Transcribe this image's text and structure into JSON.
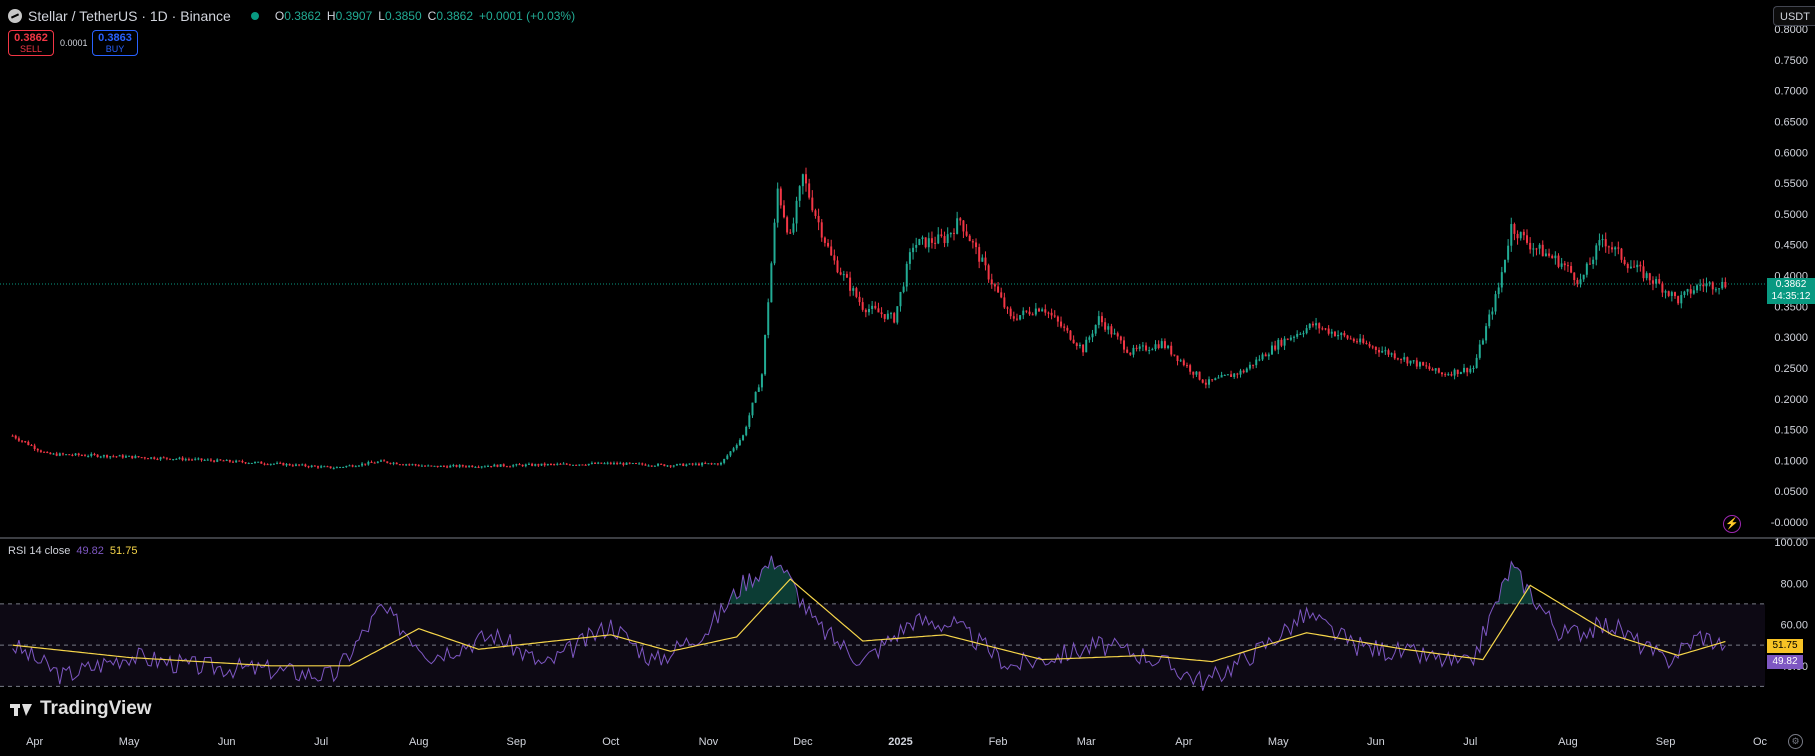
{
  "header": {
    "symbol": "Stellar / TetherUS · 1D · Binance",
    "ohlc": {
      "o_label": "O",
      "o": "0.3862",
      "h_label": "H",
      "h": "0.3907",
      "l_label": "L",
      "l": "0.3850",
      "c_label": "C",
      "c": "0.3862",
      "change": "+0.0001 (+0.03%)"
    }
  },
  "trade": {
    "sell_price": "0.3862",
    "sell_label": "SELL",
    "spread": "0.0001",
    "buy_price": "0.3863",
    "buy_label": "BUY"
  },
  "currency_button": "USDT",
  "price_tag": {
    "price": "0.3862",
    "countdown": "14:35:12"
  },
  "rsi": {
    "title": "RSI 14 close",
    "rsi_value": "49.82",
    "ma_value": "51.75"
  },
  "brand": "TradingView",
  "colors": {
    "up": "#22ab94",
    "down": "#f23645",
    "rsi": "#7e57c2",
    "rsi_ma": "#f7d64a",
    "last_price": "#089981"
  },
  "icons": {
    "flash": "lightning-icon",
    "settings": "gear-icon",
    "logo": "stellar-logo-icon"
  },
  "chart_data": [
    {
      "type": "candlestick",
      "title": "Stellar / TetherUS · 1D · Binance",
      "ylim": [
        -0.0,
        0.8
      ],
      "y_ticks": [
        "0.8000",
        "0.7500",
        "0.7000",
        "0.6500",
        "0.6000",
        "0.5500",
        "0.5000",
        "0.4500",
        "0.4000",
        "0.3500",
        "0.3000",
        "0.2500",
        "0.2000",
        "0.1500",
        "0.1000",
        "0.0500",
        "-0.0000"
      ],
      "x_ticks": [
        "Apr",
        "May",
        "Jun",
        "Jul",
        "Aug",
        "Sep",
        "Oct",
        "Nov",
        "Dec",
        "2025",
        "Feb",
        "Mar",
        "Apr",
        "May",
        "Jun",
        "Jul",
        "Aug",
        "Sep",
        "Oc"
      ],
      "last_price": 0.3862,
      "grid": false,
      "approx_closes": [
        {
          "x": "2024-03-25",
          "y": 0.14
        },
        {
          "x": "2024-04-05",
          "y": 0.11
        },
        {
          "x": "2024-04-20",
          "y": 0.108
        },
        {
          "x": "2024-05-15",
          "y": 0.103
        },
        {
          "x": "2024-06-15",
          "y": 0.095
        },
        {
          "x": "2024-07-05",
          "y": 0.088
        },
        {
          "x": "2024-07-20",
          "y": 0.098
        },
        {
          "x": "2024-08-05",
          "y": 0.09
        },
        {
          "x": "2024-09-01",
          "y": 0.092
        },
        {
          "x": "2024-10-01",
          "y": 0.095
        },
        {
          "x": "2024-10-20",
          "y": 0.092
        },
        {
          "x": "2024-11-05",
          "y": 0.095
        },
        {
          "x": "2024-11-12",
          "y": 0.14
        },
        {
          "x": "2024-11-18",
          "y": 0.24
        },
        {
          "x": "2024-11-23",
          "y": 0.54
        },
        {
          "x": "2024-11-27",
          "y": 0.46
        },
        {
          "x": "2024-12-01",
          "y": 0.56
        },
        {
          "x": "2024-12-05",
          "y": 0.5
        },
        {
          "x": "2024-12-10",
          "y": 0.43
        },
        {
          "x": "2024-12-20",
          "y": 0.35
        },
        {
          "x": "2024-12-30",
          "y": 0.33
        },
        {
          "x": "2025-01-05",
          "y": 0.45
        },
        {
          "x": "2025-01-15",
          "y": 0.46
        },
        {
          "x": "2025-01-20",
          "y": 0.49
        },
        {
          "x": "2025-01-28",
          "y": 0.41
        },
        {
          "x": "2025-02-05",
          "y": 0.33
        },
        {
          "x": "2025-02-15",
          "y": 0.35
        },
        {
          "x": "2025-02-28",
          "y": 0.28
        },
        {
          "x": "2025-03-05",
          "y": 0.33
        },
        {
          "x": "2025-03-15",
          "y": 0.275
        },
        {
          "x": "2025-03-25",
          "y": 0.29
        },
        {
          "x": "2025-04-08",
          "y": 0.225
        },
        {
          "x": "2025-04-20",
          "y": 0.245
        },
        {
          "x": "2025-05-01",
          "y": 0.29
        },
        {
          "x": "2025-05-12",
          "y": 0.32
        },
        {
          "x": "2025-05-25",
          "y": 0.295
        },
        {
          "x": "2025-06-10",
          "y": 0.265
        },
        {
          "x": "2025-06-22",
          "y": 0.24
        },
        {
          "x": "2025-07-02",
          "y": 0.25
        },
        {
          "x": "2025-07-10",
          "y": 0.38
        },
        {
          "x": "2025-07-14",
          "y": 0.48
        },
        {
          "x": "2025-07-20",
          "y": 0.45
        },
        {
          "x": "2025-07-30",
          "y": 0.42
        },
        {
          "x": "2025-08-05",
          "y": 0.39
        },
        {
          "x": "2025-08-12",
          "y": 0.46
        },
        {
          "x": "2025-08-20",
          "y": 0.42
        },
        {
          "x": "2025-08-30",
          "y": 0.385
        },
        {
          "x": "2025-09-05",
          "y": 0.36
        },
        {
          "x": "2025-09-12",
          "y": 0.385
        },
        {
          "x": "2025-09-20",
          "y": 0.386
        }
      ]
    },
    {
      "type": "line",
      "title": "RSI 14 close",
      "ylim": [
        20,
        100
      ],
      "y_ticks": [
        "100.00",
        "80.00",
        "60.00",
        "40.00"
      ],
      "bands": [
        70,
        50,
        30
      ],
      "series": [
        {
          "name": "RSI",
          "approx_values": [
            {
              "x": "2024-03-25",
              "y": 50
            },
            {
              "x": "2024-04-10",
              "y": 35
            },
            {
              "x": "2024-05-01",
              "y": 45
            },
            {
              "x": "2024-05-20",
              "y": 40
            },
            {
              "x": "2024-06-15",
              "y": 38
            },
            {
              "x": "2024-07-05",
              "y": 35
            },
            {
              "x": "2024-07-20",
              "y": 68
            },
            {
              "x": "2024-08-05",
              "y": 45
            },
            {
              "x": "2024-08-25",
              "y": 55
            },
            {
              "x": "2024-09-10",
              "y": 40
            },
            {
              "x": "2024-10-01",
              "y": 60
            },
            {
              "x": "2024-10-15",
              "y": 42
            },
            {
              "x": "2024-11-01",
              "y": 58
            },
            {
              "x": "2024-11-12",
              "y": 80
            },
            {
              "x": "2024-11-23",
              "y": 92
            },
            {
              "x": "2024-12-05",
              "y": 60
            },
            {
              "x": "2024-12-20",
              "y": 42
            },
            {
              "x": "2025-01-05",
              "y": 62
            },
            {
              "x": "2025-01-18",
              "y": 60
            },
            {
              "x": "2025-02-05",
              "y": 40
            },
            {
              "x": "2025-02-20",
              "y": 45
            },
            {
              "x": "2025-03-05",
              "y": 50
            },
            {
              "x": "2025-03-20",
              "y": 45
            },
            {
              "x": "2025-04-08",
              "y": 32
            },
            {
              "x": "2025-04-25",
              "y": 48
            },
            {
              "x": "2025-05-10",
              "y": 65
            },
            {
              "x": "2025-05-25",
              "y": 50
            },
            {
              "x": "2025-06-15",
              "y": 45
            },
            {
              "x": "2025-07-01",
              "y": 40
            },
            {
              "x": "2025-07-14",
              "y": 88
            },
            {
              "x": "2025-07-30",
              "y": 55
            },
            {
              "x": "2025-08-15",
              "y": 60
            },
            {
              "x": "2025-09-01",
              "y": 42
            },
            {
              "x": "2025-09-12",
              "y": 55
            },
            {
              "x": "2025-09-20",
              "y": 49.82
            }
          ]
        },
        {
          "name": "RSI-based MA",
          "approx_values": [
            {
              "x": "2024-03-25",
              "y": 50
            },
            {
              "x": "2024-05-01",
              "y": 44
            },
            {
              "x": "2024-06-15",
              "y": 40
            },
            {
              "x": "2024-07-10",
              "y": 40
            },
            {
              "x": "2024-08-01",
              "y": 58
            },
            {
              "x": "2024-08-20",
              "y": 48
            },
            {
              "x": "2024-10-01",
              "y": 55
            },
            {
              "x": "2024-10-20",
              "y": 47
            },
            {
              "x": "2024-11-10",
              "y": 54
            },
            {
              "x": "2024-11-27",
              "y": 82
            },
            {
              "x": "2024-12-20",
              "y": 52
            },
            {
              "x": "2025-01-15",
              "y": 55
            },
            {
              "x": "2025-02-15",
              "y": 43
            },
            {
              "x": "2025-03-20",
              "y": 45
            },
            {
              "x": "2025-04-10",
              "y": 42
            },
            {
              "x": "2025-05-10",
              "y": 56
            },
            {
              "x": "2025-06-10",
              "y": 48
            },
            {
              "x": "2025-07-05",
              "y": 43
            },
            {
              "x": "2025-07-20",
              "y": 79
            },
            {
              "x": "2025-08-15",
              "y": 55
            },
            {
              "x": "2025-09-05",
              "y": 45
            },
            {
              "x": "2025-09-20",
              "y": 51.75
            }
          ]
        }
      ]
    }
  ]
}
